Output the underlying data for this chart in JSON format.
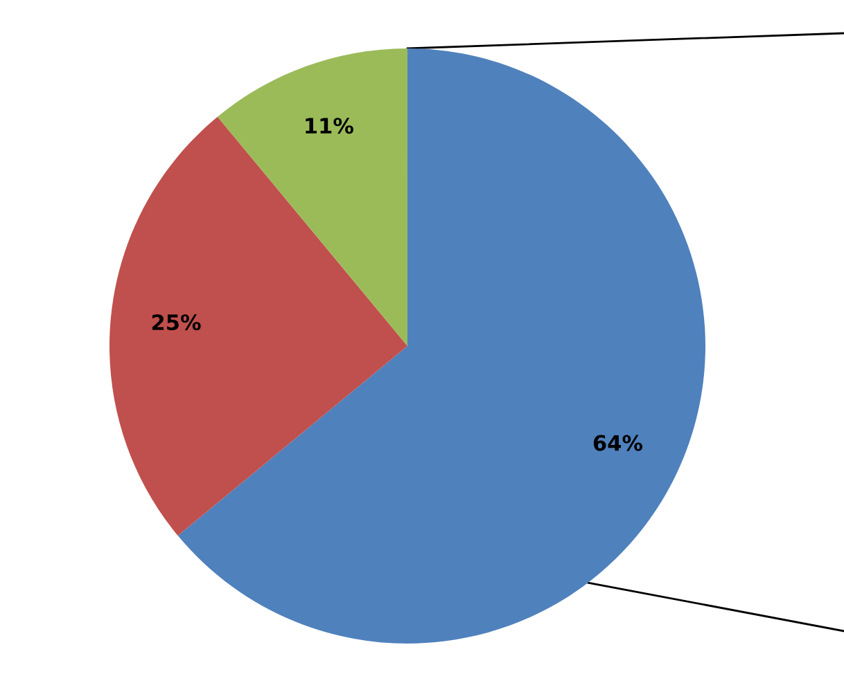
{
  "chart_data": {
    "type": "pie",
    "categories": [
      null,
      null,
      null
    ],
    "values": [
      64,
      25,
      11
    ],
    "colors": [
      "#4f81bd",
      "#c0504d",
      "#9bbb59"
    ],
    "value_labels": [
      "64%",
      "25%",
      "11%"
    ]
  }
}
